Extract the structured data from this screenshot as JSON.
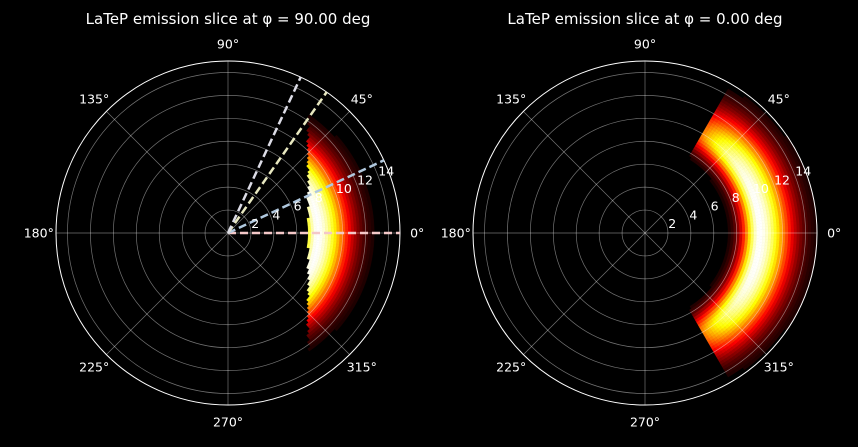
{
  "chart_data": [
    {
      "type": "heatmap",
      "subtype": "polar",
      "title": "LaTeP emission slice at φ = 90.00 deg",
      "colormap": "hot",
      "background": "#000000",
      "theta_ticks": [
        "0°",
        "45°",
        "90°",
        "135°",
        "180°",
        "225°",
        "270°",
        "315°"
      ],
      "theta_tick_degrees": [
        0,
        45,
        90,
        135,
        180,
        225,
        270,
        315
      ],
      "r_ticks": [
        "2",
        "4",
        "6",
        "8",
        "10",
        "12",
        "14"
      ],
      "r_tick_values": [
        2,
        4,
        6,
        8,
        10,
        12,
        14
      ],
      "rlim": [
        0,
        15
      ],
      "grid": true,
      "emission": {
        "theta_range_deg": [
          -60,
          60
        ],
        "r_range": [
          2,
          15.3
        ],
        "peak_r": 7.8,
        "inner_edge": "x = 7",
        "notch_theta_deg": [
          -32,
          28
        ],
        "notch_r_max": 6.6
      },
      "guide_lines": [
        {
          "angle_deg": 0,
          "color": "#f4c8c8"
        },
        {
          "angle_deg": 25,
          "color": "#b0c8de"
        },
        {
          "angle_deg": 55,
          "color": "#e8e8c0"
        },
        {
          "angle_deg": 65,
          "color": "#dcdce6"
        }
      ]
    },
    {
      "type": "heatmap",
      "subtype": "polar",
      "title": "LaTeP emission slice at φ = 0.00 deg",
      "colormap": "hot",
      "background": "#000000",
      "theta_ticks": [
        "0°",
        "45°",
        "90°",
        "135°",
        "180°",
        "225°",
        "270°",
        "315°"
      ],
      "theta_tick_degrees": [
        0,
        45,
        90,
        135,
        180,
        225,
        270,
        315
      ],
      "r_ticks": [
        "2",
        "4",
        "6",
        "8",
        "10",
        "12",
        "14"
      ],
      "r_tick_values": [
        2,
        4,
        6,
        8,
        10,
        12,
        14
      ],
      "rlim": [
        0,
        15
      ],
      "grid": true,
      "emission": {
        "theta_range_deg": [
          -60,
          60
        ],
        "r_range": [
          2,
          15.3
        ],
        "peak_r": 10,
        "inner_edge": "x = 4"
      },
      "guide_lines": []
    }
  ]
}
